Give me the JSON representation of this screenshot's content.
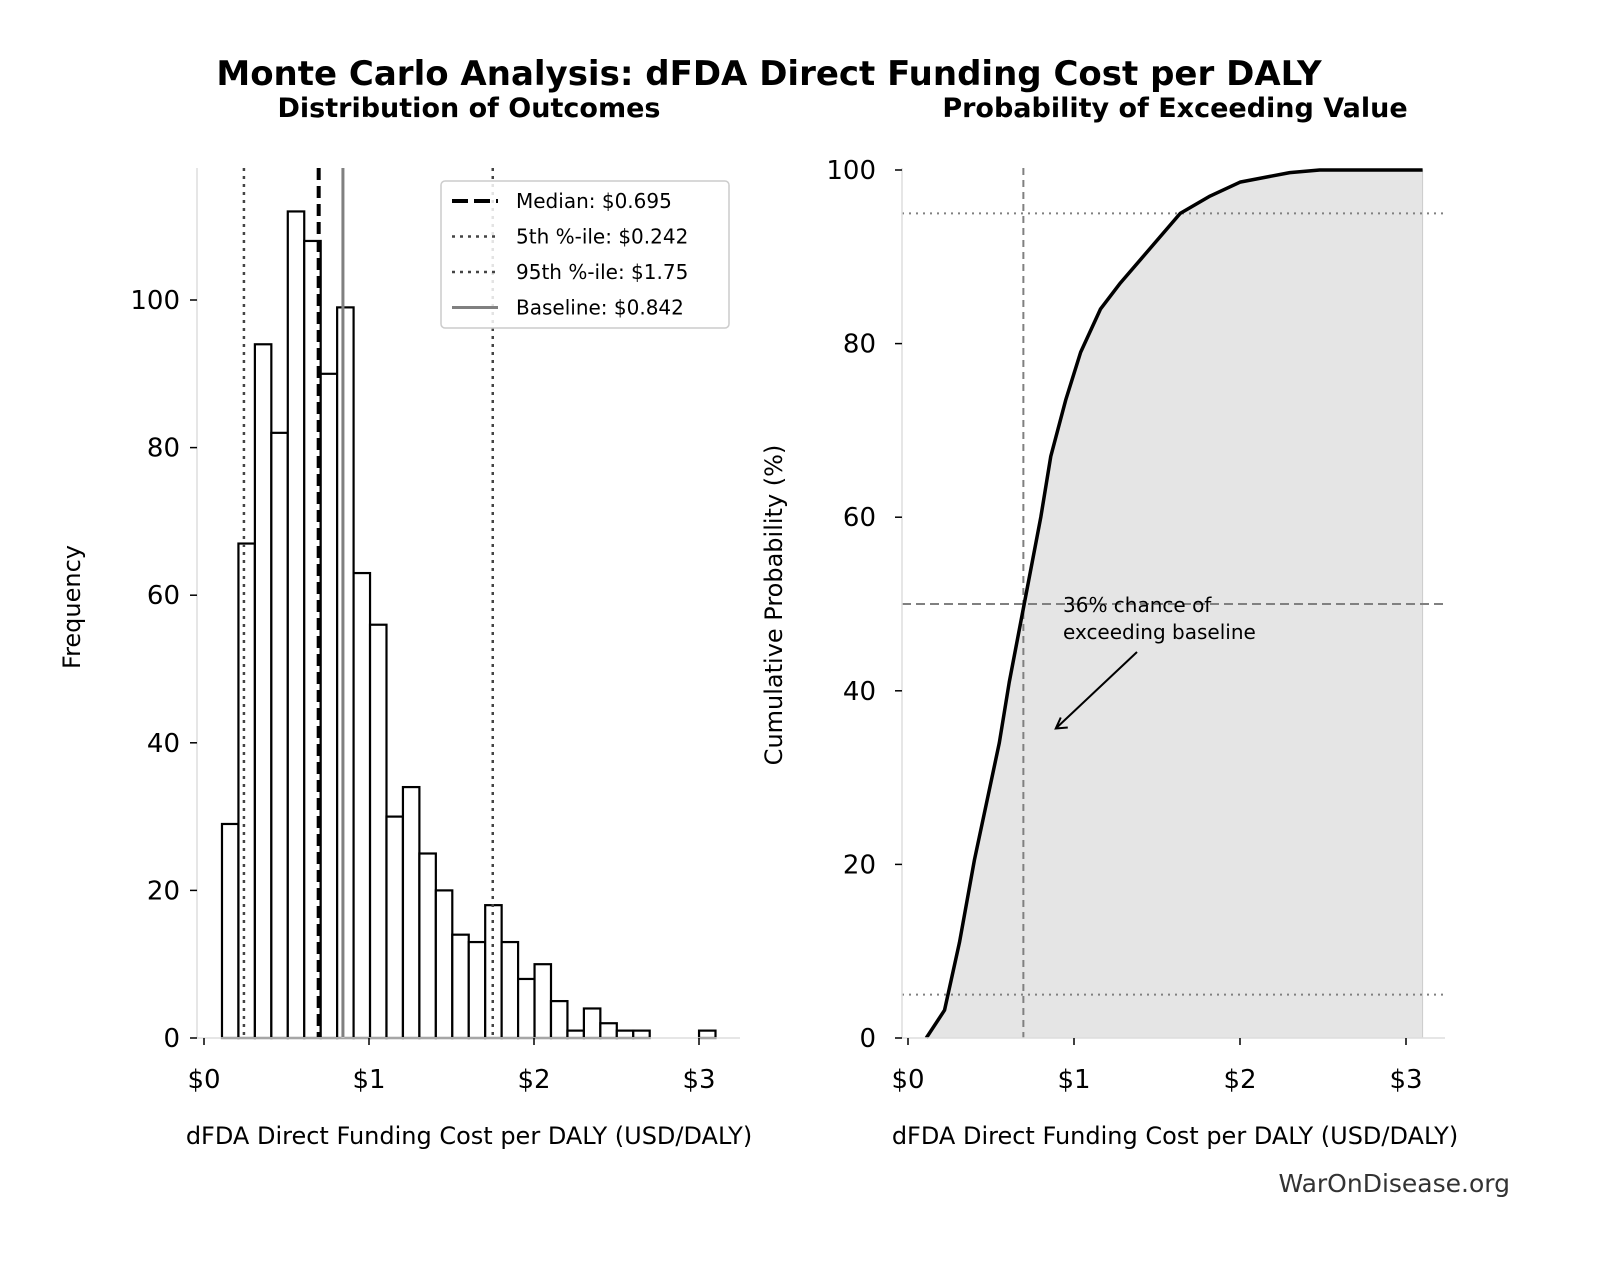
{
  "title": "Monte Carlo Analysis: dFDA Direct Funding Cost per DALY",
  "watermark": "WarOnDisease.org",
  "chart_data": [
    {
      "type": "bar",
      "title": "Distribution of Outcomes",
      "xlabel": "dFDA Direct Funding Cost per DALY (USD/DALY)",
      "ylabel": "Frequency",
      "xlim": [
        -0.04,
        3.25
      ],
      "ylim": [
        0,
        118
      ],
      "xticks": [
        {
          "v": 0,
          "label": "$0"
        },
        {
          "v": 1,
          "label": "$1"
        },
        {
          "v": 2,
          "label": "$2"
        },
        {
          "v": 3,
          "label": "$3"
        }
      ],
      "yticks": [
        {
          "v": 0,
          "label": "0"
        },
        {
          "v": 20,
          "label": "20"
        },
        {
          "v": 40,
          "label": "40"
        },
        {
          "v": 60,
          "label": "60"
        },
        {
          "v": 80,
          "label": "80"
        },
        {
          "v": 100,
          "label": "100"
        }
      ],
      "bin_start": 0.109,
      "bin_width": 0.0997,
      "counts": [
        29,
        67,
        94,
        82,
        112,
        108,
        90,
        99,
        63,
        56,
        30,
        34,
        25,
        20,
        14,
        13,
        18,
        13,
        8,
        10,
        5,
        1,
        4,
        2,
        1,
        1,
        0,
        0,
        0,
        1
      ],
      "grid": false,
      "legend_position": "top-right",
      "reference_lines": [
        {
          "name": "Median: $0.695",
          "value": 0.695,
          "style": "dashed",
          "color": "#000000"
        },
        {
          "name": "5th %-ile: $0.242",
          "value": 0.242,
          "style": "dotted",
          "color": "#444444"
        },
        {
          "name": "95th %-ile: $1.75",
          "value": 1.75,
          "style": "dotted",
          "color": "#444444"
        },
        {
          "name": "Baseline: $0.842",
          "value": 0.842,
          "style": "solid",
          "color": "#808080"
        }
      ]
    },
    {
      "type": "area",
      "title": "Probability of Exceeding Value",
      "xlabel": "dFDA Direct Funding Cost per DALY (USD/DALY)",
      "ylabel": "Cumulative Probability (%)",
      "xlim": [
        -0.04,
        3.25
      ],
      "ylim": [
        0,
        100
      ],
      "xticks": [
        {
          "v": 0,
          "label": "$0"
        },
        {
          "v": 1,
          "label": "$1"
        },
        {
          "v": 2,
          "label": "$2"
        },
        {
          "v": 3,
          "label": "$3"
        }
      ],
      "yticks": [
        {
          "v": 0,
          "label": "0"
        },
        {
          "v": 20,
          "label": "20"
        },
        {
          "v": 40,
          "label": "40"
        },
        {
          "v": 60,
          "label": "60"
        },
        {
          "v": 80,
          "label": "80"
        },
        {
          "v": 100,
          "label": "100"
        }
      ],
      "grid": false,
      "fill_color": "#e5e5e5",
      "x": [
        0.11,
        0.22,
        0.31,
        0.4,
        0.49,
        0.55,
        0.61,
        0.7,
        0.8,
        0.86,
        0.95,
        1.04,
        1.16,
        1.28,
        1.46,
        1.64,
        1.82,
        2.0,
        2.3,
        2.48,
        3.1
      ],
      "y": [
        0,
        3.2,
        11,
        20.5,
        28.6,
        34,
        41,
        50,
        60,
        67,
        73.5,
        79,
        84,
        87,
        91,
        95,
        97,
        98.6,
        99.7,
        100,
        100
      ],
      "reference_lines": [
        {
          "axis": "x",
          "value": 0.695,
          "style": "dashed",
          "color": "#808080"
        },
        {
          "axis": "y",
          "value": 50,
          "style": "dashed",
          "color": "#808080"
        },
        {
          "axis": "y",
          "value": 5,
          "style": "dotted",
          "color": "#808080"
        },
        {
          "axis": "y",
          "value": 95,
          "style": "dotted",
          "color": "#808080"
        }
      ],
      "annotation": {
        "text_line1": "36% chance of",
        "text_line2": "exceeding baseline",
        "x": 0.842,
        "y": 36
      }
    }
  ]
}
